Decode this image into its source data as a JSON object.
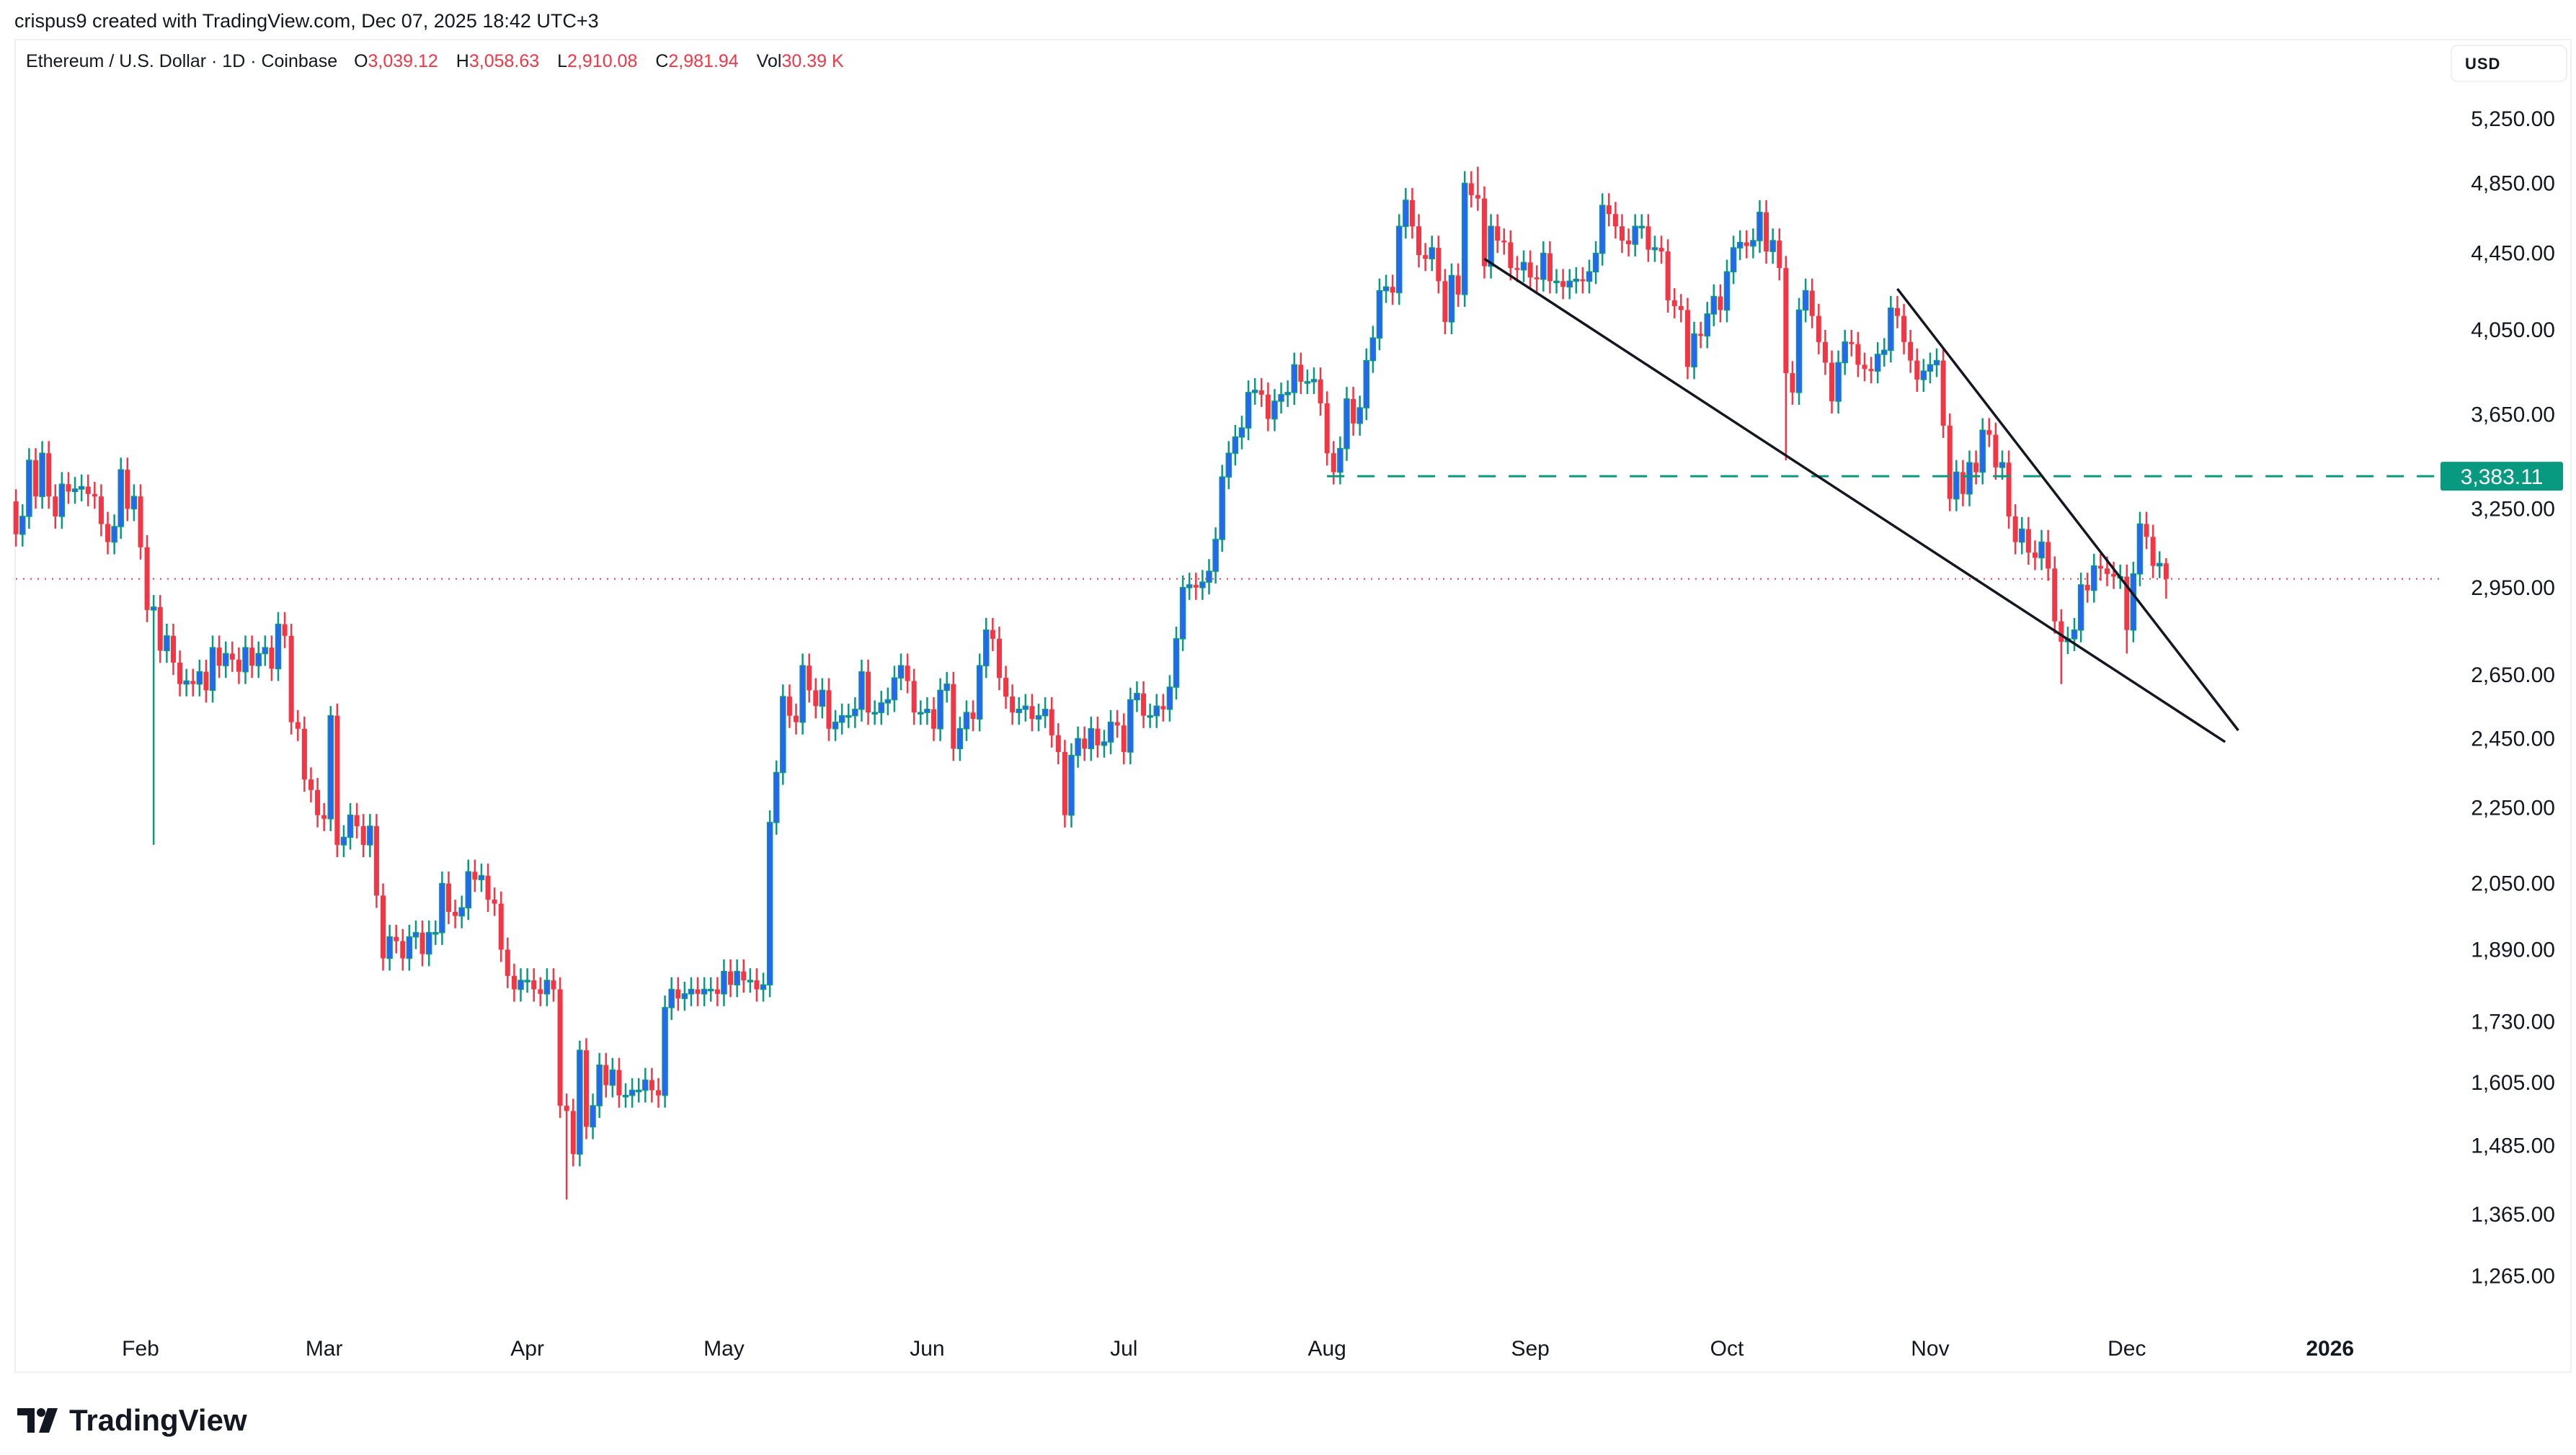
{
  "attribution": "crispus9 created with TradingView.com, Dec 07, 2025 18:42 UTC+3",
  "legend": {
    "symbol": "Ethereum / U.S. Dollar · 1D · Coinbase",
    "o_label": "O",
    "o": "3,039.12",
    "h_label": "H",
    "h": "3,058.63",
    "l_label": "L",
    "l": "2,910.08",
    "c_label": "C",
    "c": "2,981.94",
    "vol_label": "Vol",
    "vol": "30.39 K"
  },
  "currency_button": "USD",
  "brand": "TradingView",
  "colors": {
    "up_body": "#2962ff",
    "up_wick": "#089981",
    "down": "#f23645",
    "level": "#089981",
    "trendline": "#131722",
    "last_price": "#f23645"
  },
  "chart_data": {
    "type": "candlestick",
    "interval": "1D",
    "y_scale": "log",
    "ylim": [
      1200,
      5500
    ],
    "grid": false,
    "first_date": "2025-01-13",
    "first_open": 3280,
    "last_candle": {
      "open": 3039.12,
      "high": 3058.63,
      "low": 2910.08,
      "close": 2981.94
    },
    "closes": [
      3150,
      3220,
      3450,
      3300,
      3480,
      3300,
      3220,
      3350,
      3320,
      3330,
      3340,
      3310,
      3300,
      3190,
      3120,
      3180,
      3410,
      3250,
      3300,
      3100,
      2870,
      2880,
      2730,
      2780,
      2690,
      2620,
      2630,
      2620,
      2660,
      2600,
      2740,
      2680,
      2720,
      2700,
      2660,
      2740,
      2680,
      2720,
      2740,
      2670,
      2820,
      2780,
      2500,
      2480,
      2330,
      2300,
      2230,
      2220,
      2520,
      2150,
      2170,
      2230,
      2200,
      2150,
      2200,
      2020,
      1870,
      1920,
      1910,
      1870,
      1920,
      1930,
      1880,
      1930,
      1930,
      2050,
      1980,
      1970,
      1990,
      2080,
      2060,
      2070,
      2010,
      2000,
      1890,
      1830,
      1800,
      1820,
      1820,
      1800,
      1790,
      1820,
      1800,
      1560,
      1550,
      1470,
      1670,
      1520,
      1560,
      1640,
      1600,
      1630,
      1580,
      1580,
      1590,
      1590,
      1610,
      1590,
      1580,
      1760,
      1800,
      1780,
      1790,
      1800,
      1790,
      1800,
      1800,
      1790,
      1840,
      1810,
      1840,
      1820,
      1820,
      1800,
      1810,
      2210,
      2350,
      2580,
      2520,
      2500,
      2680,
      2600,
      2550,
      2600,
      2480,
      2500,
      2520,
      2520,
      2540,
      2660,
      2530,
      2530,
      2560,
      2570,
      2640,
      2680,
      2630,
      2530,
      2530,
      2540,
      2480,
      2600,
      2620,
      2420,
      2480,
      2530,
      2510,
      2680,
      2800,
      2770,
      2640,
      2580,
      2530,
      2540,
      2550,
      2510,
      2520,
      2540,
      2460,
      2410,
      2230,
      2400,
      2450,
      2420,
      2480,
      2430,
      2440,
      2500,
      2490,
      2410,
      2570,
      2590,
      2520,
      2520,
      2550,
      2540,
      2610,
      2770,
      2950,
      2960,
      2950,
      2970,
      3010,
      3130,
      3380,
      3480,
      3550,
      3590,
      3750,
      3760,
      3740,
      3630,
      3710,
      3740,
      3750,
      3880,
      3800,
      3800,
      3810,
      3700,
      3480,
      3400,
      3500,
      3720,
      3610,
      3680,
      3900,
      4010,
      4250,
      4270,
      4240,
      4600,
      4750,
      4600,
      4440,
      4420,
      4480,
      4300,
      4090,
      4330,
      4230,
      4850,
      4780,
      4760,
      4380,
      4600,
      4520,
      4510,
      4370,
      4360,
      4400,
      4320,
      4310,
      4450,
      4300,
      4300,
      4270,
      4300,
      4310,
      4300,
      4350,
      4450,
      4720,
      4670,
      4600,
      4520,
      4500,
      4600,
      4600,
      4470,
      4480,
      4460,
      4200,
      4170,
      4150,
      3870,
      4030,
      4020,
      4130,
      4220,
      4150,
      4350,
      4480,
      4510,
      4490,
      4520,
      4680,
      4460,
      4520,
      4370,
      3840,
      3750,
      4150,
      4250,
      4120,
      3990,
      3890,
      3710,
      3890,
      3990,
      3980,
      3880,
      3860,
      3850,
      3930,
      3950,
      4160,
      4120,
      3990,
      3900,
      3810,
      3850,
      3880,
      3900,
      3600,
      3290,
      3400,
      3310,
      3440,
      3400,
      3580,
      3560,
      3420,
      3440,
      3220,
      3120,
      3170,
      3080,
      3060,
      3120,
      3020,
      2830,
      2760,
      2770,
      2800,
      2960,
      2940,
      3030,
      3020,
      3000,
      2990,
      2990,
      2800,
      3000,
      3190,
      3140,
      3030,
      3039.12,
      2981.94
    ],
    "notable_wicks": [
      {
        "date": "2025-02-03",
        "low": 2150
      },
      {
        "date": "2025-03-02",
        "high": 2550
      },
      {
        "date": "2025-04-07",
        "low": 1390
      },
      {
        "date": "2025-04-09",
        "high": 1690
      },
      {
        "date": "2025-08-24",
        "high": 4950
      },
      {
        "date": "2025-10-10",
        "low": 3450
      },
      {
        "date": "2025-11-21",
        "low": 2620
      },
      {
        "date": "2025-12-01",
        "low": 2720
      }
    ],
    "y_ticks": [
      "5,250.00",
      "4,850.00",
      "4,450.00",
      "4,050.00",
      "3,650.00",
      "3,250.00",
      "2,950.00",
      "2,650.00",
      "2,450.00",
      "2,250.00",
      "2,050.00",
      "1,890.00",
      "1,730.00",
      "1,605.00",
      "1,485.00",
      "1,365.00",
      "1,265.00"
    ],
    "x_ticks": [
      {
        "label": "Feb",
        "date": "2025-02-01"
      },
      {
        "label": "Mar",
        "date": "2025-03-01"
      },
      {
        "label": "Apr",
        "date": "2025-04-01"
      },
      {
        "label": "May",
        "date": "2025-05-01"
      },
      {
        "label": "Jun",
        "date": "2025-06-01"
      },
      {
        "label": "Jul",
        "date": "2025-07-01"
      },
      {
        "label": "Aug",
        "date": "2025-08-01"
      },
      {
        "label": "Sep",
        "date": "2025-09-01"
      },
      {
        "label": "Oct",
        "date": "2025-10-01"
      },
      {
        "label": "Nov",
        "date": "2025-11-01"
      },
      {
        "label": "Dec",
        "date": "2025-12-01"
      },
      {
        "label": "2026",
        "date": "2026-01-01"
      }
    ],
    "horizontal_level": {
      "value": 3383.11,
      "label": "3,383.11",
      "from_date": "2025-08-01",
      "style": "dashed"
    },
    "last_price_line": {
      "value": 2981.94,
      "style": "dotted"
    },
    "trendlines": [
      {
        "name": "lower",
        "from": {
          "date": "2025-08-25",
          "price": 4420
        },
        "to": {
          "date": "2025-12-16",
          "price": 2440
        }
      },
      {
        "name": "upper",
        "from": {
          "date": "2025-10-27",
          "price": 4260
        },
        "to": {
          "date": "2025-12-18",
          "price": 2475
        }
      }
    ]
  }
}
